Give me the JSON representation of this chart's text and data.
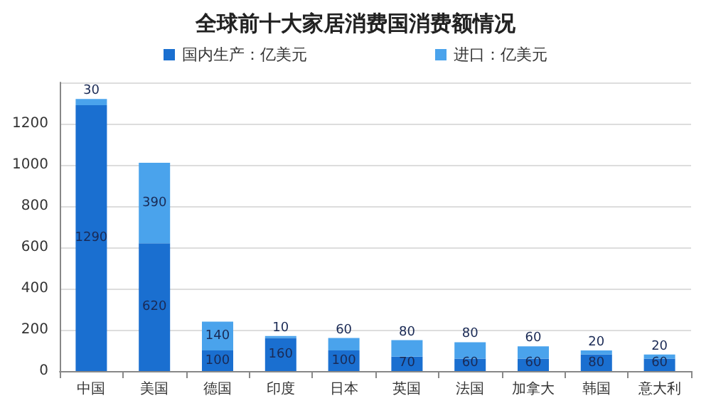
{
  "chart_data": {
    "type": "bar",
    "title": "全球前十大家居消费国消费额情况",
    "stacked": true,
    "categories": [
      "中国",
      "美国",
      "德国",
      "印度",
      "日本",
      "英国",
      "法国",
      "加拿大",
      "韩国",
      "意大利"
    ],
    "series": [
      {
        "name": "国内生产：亿美元",
        "color": "#1a6fd0",
        "values": [
          1290,
          620,
          100,
          160,
          100,
          70,
          60,
          60,
          80,
          60
        ]
      },
      {
        "name": "进口：亿美元",
        "color": "#4aa3ec",
        "values": [
          30,
          390,
          140,
          10,
          60,
          80,
          80,
          60,
          20,
          20
        ]
      }
    ],
    "ylim": [
      0,
      1400
    ],
    "yticks": [
      0,
      200,
      400,
      600,
      800,
      1000,
      1200,
      {
        "value": 1400,
        "label": null
      }
    ],
    "grid": "y",
    "legend": "top",
    "data_labels": true
  }
}
